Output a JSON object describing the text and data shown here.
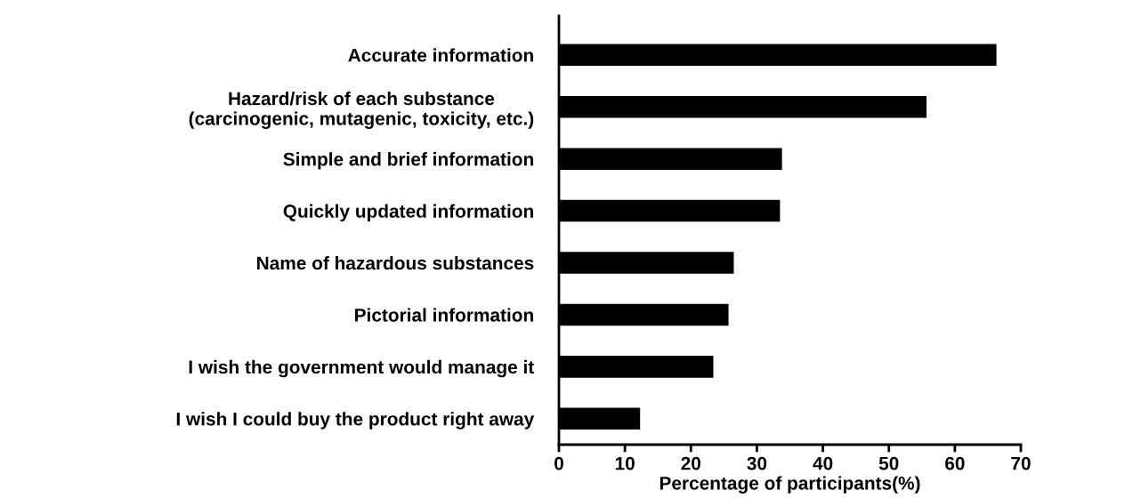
{
  "chart_data": {
    "type": "bar",
    "orientation": "horizontal",
    "xlabel": "Percentage of participants(%)",
    "categories": [
      "Accurate information",
      "Hazard/risk of each substance\n(carcinogenic, mutagenic, toxicity, etc.)",
      "Simple and brief information",
      "Quickly updated information",
      "Name of hazardous substances",
      "Pictorial information",
      "I wish the government would manage it",
      "I wish I could buy the product right away"
    ],
    "values": [
      66.3,
      55.7,
      33.8,
      33.5,
      26.5,
      25.7,
      23.4,
      12.3
    ],
    "color": "#000000",
    "xlim": [
      0,
      70
    ],
    "xticks": [
      0,
      10,
      20,
      30,
      40,
      50,
      60,
      70
    ],
    "grid": false
  }
}
